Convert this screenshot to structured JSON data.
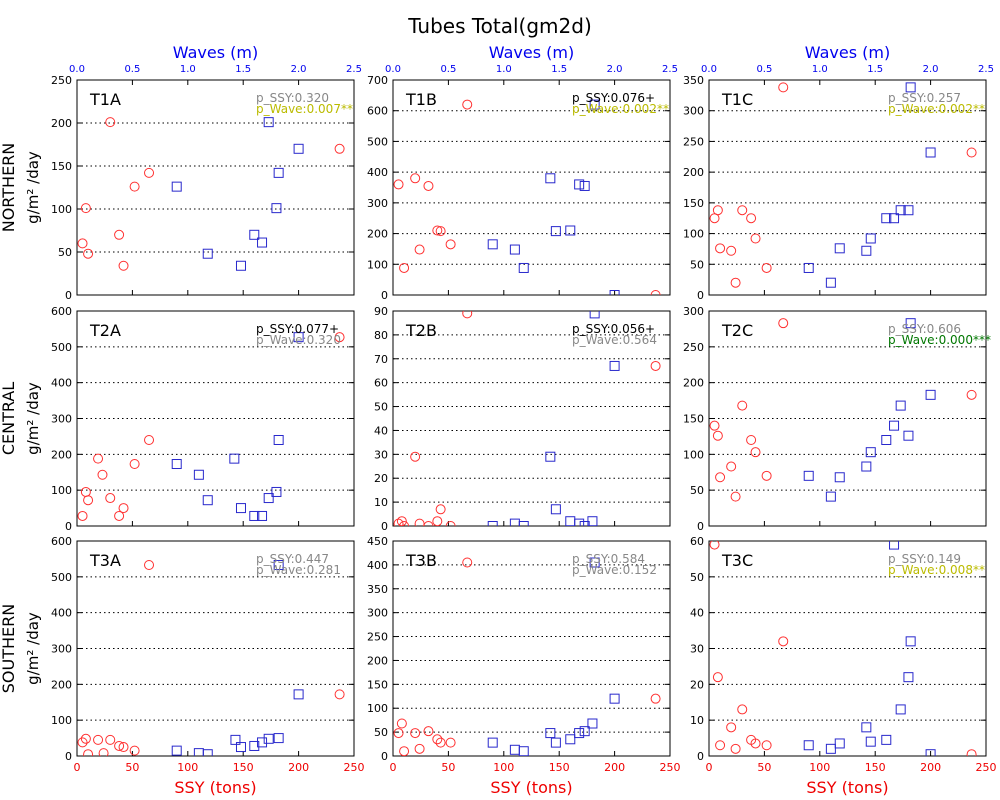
{
  "figure": {
    "title": "Tubes Total(gm2d)",
    "top_axis_label": "Waves (m)",
    "bottom_axis_label": "SSY (tons)",
    "row_labels": [
      {
        "region": "NORTHERN",
        "unit": "g/m² /day"
      },
      {
        "region": "CENTRAL",
        "unit": "g/m² /day"
      },
      {
        "region": "SOUTHERN",
        "unit": "g/m² /day"
      }
    ],
    "colors": {
      "circle": "#ff3030",
      "square": "#2828cc",
      "axis_label_blue": "#0000ee",
      "axis_label_red": "#ee0000",
      "p_gray": "#888888",
      "p_black": "#000000",
      "p_yellow": "#bbbb00",
      "p_green": "#007700"
    },
    "wave_ticks": [
      "0.0",
      "0.5",
      "1.0",
      "1.5",
      "2.0",
      "2.5"
    ],
    "ssy_ticks": [
      "0",
      "50",
      "100",
      "150",
      "200",
      "250"
    ]
  },
  "chart_data": [
    {
      "type": "scatter",
      "panel": "T1A",
      "p_ssy": "p_SSY:0.320",
      "p_ssy_color": "gray",
      "p_wave": "p_Wave:0.007**",
      "p_wave_color": "yellow",
      "ylim": [
        0,
        250
      ],
      "yticks": [
        0,
        50,
        100,
        150,
        200,
        250
      ],
      "ssy_points": [
        [
          5,
          60
        ],
        [
          8,
          101
        ],
        [
          10,
          48
        ],
        [
          30,
          201
        ],
        [
          38,
          70
        ],
        [
          42,
          34
        ],
        [
          52,
          126
        ],
        [
          65,
          142
        ],
        [
          237,
          170
        ]
      ],
      "wave_points": [
        [
          0.9,
          126
        ],
        [
          1.18,
          48
        ],
        [
          1.48,
          34
        ],
        [
          1.6,
          70
        ],
        [
          1.67,
          61
        ],
        [
          1.73,
          201
        ],
        [
          1.8,
          101
        ],
        [
          1.82,
          142
        ],
        [
          2.0,
          170
        ]
      ]
    },
    {
      "type": "scatter",
      "panel": "T1B",
      "p_ssy": "p_SSY:0.076+",
      "p_ssy_color": "black",
      "p_wave": "p_Wave:0.002**",
      "p_wave_color": "yellow",
      "ylim": [
        0,
        700
      ],
      "yticks": [
        0,
        100,
        200,
        300,
        400,
        500,
        600,
        700
      ],
      "ssy_points": [
        [
          5,
          360
        ],
        [
          10,
          88
        ],
        [
          20,
          380
        ],
        [
          24,
          148
        ],
        [
          32,
          355
        ],
        [
          40,
          210
        ],
        [
          43,
          208
        ],
        [
          52,
          165
        ],
        [
          67,
          620
        ],
        [
          237,
          0
        ]
      ],
      "wave_points": [
        [
          0.9,
          165
        ],
        [
          1.1,
          148
        ],
        [
          1.18,
          88
        ],
        [
          1.42,
          380
        ],
        [
          1.47,
          208
        ],
        [
          1.6,
          210
        ],
        [
          1.68,
          360
        ],
        [
          1.73,
          355
        ],
        [
          1.82,
          620
        ],
        [
          2.0,
          0
        ]
      ]
    },
    {
      "type": "scatter",
      "panel": "T1C",
      "p_ssy": "p_SSY:0.257",
      "p_ssy_color": "gray",
      "p_wave": "p_Wave:0.002**",
      "p_wave_color": "yellow",
      "ylim": [
        0,
        350
      ],
      "yticks": [
        0,
        50,
        100,
        150,
        200,
        250,
        300,
        350
      ],
      "ssy_points": [
        [
          5,
          125
        ],
        [
          8,
          138
        ],
        [
          10,
          76
        ],
        [
          20,
          72
        ],
        [
          24,
          20
        ],
        [
          30,
          138
        ],
        [
          38,
          125
        ],
        [
          42,
          92
        ],
        [
          52,
          44
        ],
        [
          67,
          338
        ],
        [
          237,
          232
        ]
      ],
      "wave_points": [
        [
          0.9,
          44
        ],
        [
          1.1,
          20
        ],
        [
          1.18,
          76
        ],
        [
          1.42,
          72
        ],
        [
          1.46,
          92
        ],
        [
          1.6,
          125
        ],
        [
          1.67,
          125
        ],
        [
          1.73,
          138
        ],
        [
          1.8,
          138
        ],
        [
          1.82,
          338
        ],
        [
          2.0,
          232
        ]
      ]
    },
    {
      "type": "scatter",
      "panel": "T2A",
      "p_ssy": "p_SSY:0.077+",
      "p_ssy_color": "black",
      "p_wave": "p_Wave:0.320",
      "p_wave_color": "gray",
      "ylim": [
        0,
        600
      ],
      "yticks": [
        0,
        100,
        200,
        300,
        400,
        500,
        600
      ],
      "ssy_points": [
        [
          5,
          28
        ],
        [
          8,
          95
        ],
        [
          10,
          72
        ],
        [
          19,
          188
        ],
        [
          23,
          143
        ],
        [
          30,
          78
        ],
        [
          38,
          28
        ],
        [
          42,
          50
        ],
        [
          52,
          173
        ],
        [
          65,
          240
        ],
        [
          237,
          527
        ]
      ],
      "wave_points": [
        [
          0.9,
          173
        ],
        [
          1.1,
          143
        ],
        [
          1.18,
          72
        ],
        [
          1.42,
          188
        ],
        [
          1.48,
          50
        ],
        [
          1.6,
          28
        ],
        [
          1.67,
          28
        ],
        [
          1.73,
          78
        ],
        [
          1.8,
          95
        ],
        [
          1.82,
          240
        ],
        [
          2.0,
          527
        ]
      ]
    },
    {
      "type": "scatter",
      "panel": "T2B",
      "p_ssy": "p_SSY:0.056+",
      "p_ssy_color": "black",
      "p_wave": "p_Wave:0.564",
      "p_wave_color": "gray",
      "ylim": [
        0,
        90
      ],
      "yticks": [
        0,
        10,
        20,
        30,
        40,
        50,
        60,
        70,
        80,
        90
      ],
      "ssy_points": [
        [
          5,
          1
        ],
        [
          8,
          2
        ],
        [
          10,
          0
        ],
        [
          20,
          29
        ],
        [
          24,
          1
        ],
        [
          32,
          0
        ],
        [
          40,
          2
        ],
        [
          43,
          7
        ],
        [
          52,
          0
        ],
        [
          67,
          89
        ],
        [
          237,
          67
        ]
      ],
      "wave_points": [
        [
          0.9,
          0
        ],
        [
          1.1,
          1
        ],
        [
          1.18,
          0
        ],
        [
          1.42,
          29
        ],
        [
          1.47,
          7
        ],
        [
          1.6,
          2
        ],
        [
          1.68,
          1
        ],
        [
          1.73,
          0
        ],
        [
          1.8,
          2
        ],
        [
          1.82,
          89
        ],
        [
          2.0,
          67
        ]
      ]
    },
    {
      "type": "scatter",
      "panel": "T2C",
      "p_ssy": "p_SSY:0.606",
      "p_ssy_color": "gray",
      "p_wave": "p_Wave:0.000***",
      "p_wave_color": "green",
      "ylim": [
        0,
        300
      ],
      "yticks": [
        0,
        50,
        100,
        150,
        200,
        250,
        300
      ],
      "ssy_points": [
        [
          5,
          140
        ],
        [
          8,
          126
        ],
        [
          10,
          68
        ],
        [
          20,
          83
        ],
        [
          24,
          41
        ],
        [
          30,
          168
        ],
        [
          38,
          120
        ],
        [
          42,
          103
        ],
        [
          52,
          70
        ],
        [
          67,
          283
        ],
        [
          237,
          183
        ]
      ],
      "wave_points": [
        [
          0.9,
          70
        ],
        [
          1.1,
          41
        ],
        [
          1.18,
          68
        ],
        [
          1.42,
          83
        ],
        [
          1.46,
          103
        ],
        [
          1.6,
          120
        ],
        [
          1.67,
          140
        ],
        [
          1.73,
          168
        ],
        [
          1.8,
          126
        ],
        [
          1.82,
          283
        ],
        [
          2.0,
          183
        ]
      ]
    },
    {
      "type": "scatter",
      "panel": "T3A",
      "p_ssy": "p_SSY:0.447",
      "p_ssy_color": "gray",
      "p_wave": "p_Wave:0.281",
      "p_wave_color": "gray",
      "ylim": [
        0,
        600
      ],
      "yticks": [
        0,
        100,
        200,
        300,
        400,
        500,
        600
      ],
      "ssy_points": [
        [
          5,
          38
        ],
        [
          8,
          48
        ],
        [
          10,
          5
        ],
        [
          19,
          45
        ],
        [
          24,
          8
        ],
        [
          30,
          45
        ],
        [
          38,
          28
        ],
        [
          42,
          25
        ],
        [
          52,
          15
        ],
        [
          65,
          533
        ],
        [
          237,
          172
        ]
      ],
      "wave_points": [
        [
          0.9,
          15
        ],
        [
          1.1,
          8
        ],
        [
          1.18,
          5
        ],
        [
          1.43,
          45
        ],
        [
          1.48,
          25
        ],
        [
          1.6,
          28
        ],
        [
          1.67,
          38
        ],
        [
          1.73,
          48
        ],
        [
          1.82,
          50
        ],
        [
          1.82,
          533
        ],
        [
          2.0,
          172
        ]
      ]
    },
    {
      "type": "scatter",
      "panel": "T3B",
      "p_ssy": "p_SSY:0.584",
      "p_ssy_color": "gray",
      "p_wave": "p_Wave:0.152",
      "p_wave_color": "gray",
      "ylim": [
        0,
        450
      ],
      "yticks": [
        0,
        50,
        100,
        150,
        200,
        250,
        300,
        350,
        400,
        450
      ],
      "ssy_points": [
        [
          5,
          48
        ],
        [
          8,
          68
        ],
        [
          10,
          10
        ],
        [
          20,
          48
        ],
        [
          24,
          15
        ],
        [
          32,
          52
        ],
        [
          40,
          35
        ],
        [
          43,
          28
        ],
        [
          52,
          28
        ],
        [
          67,
          405
        ],
        [
          237,
          120
        ]
      ],
      "wave_points": [
        [
          0.9,
          28
        ],
        [
          1.1,
          13
        ],
        [
          1.18,
          10
        ],
        [
          1.42,
          48
        ],
        [
          1.47,
          28
        ],
        [
          1.6,
          35
        ],
        [
          1.68,
          48
        ],
        [
          1.73,
          52
        ],
        [
          1.8,
          68
        ],
        [
          1.82,
          405
        ],
        [
          2.0,
          120
        ]
      ]
    },
    {
      "type": "scatter",
      "panel": "T3C",
      "p_ssy": "p_SSY:0.149",
      "p_ssy_color": "gray",
      "p_wave": "p_Wave:0.008**",
      "p_wave_color": "yellow",
      "ylim": [
        0,
        60
      ],
      "yticks": [
        0,
        10,
        20,
        30,
        40,
        50,
        60
      ],
      "ssy_points": [
        [
          5,
          59
        ],
        [
          8,
          22
        ],
        [
          10,
          3
        ],
        [
          20,
          8
        ],
        [
          24,
          2
        ],
        [
          30,
          13
        ],
        [
          38,
          4.5
        ],
        [
          42,
          3.5
        ],
        [
          52,
          3
        ],
        [
          67,
          32
        ],
        [
          237,
          0.5
        ]
      ],
      "wave_points": [
        [
          0.9,
          3
        ],
        [
          1.1,
          2
        ],
        [
          1.18,
          3.5
        ],
        [
          1.42,
          8
        ],
        [
          1.46,
          4
        ],
        [
          1.6,
          4.5
        ],
        [
          1.67,
          59
        ],
        [
          1.73,
          13
        ],
        [
          1.8,
          22
        ],
        [
          1.82,
          32
        ],
        [
          2.0,
          0.5
        ]
      ]
    }
  ]
}
